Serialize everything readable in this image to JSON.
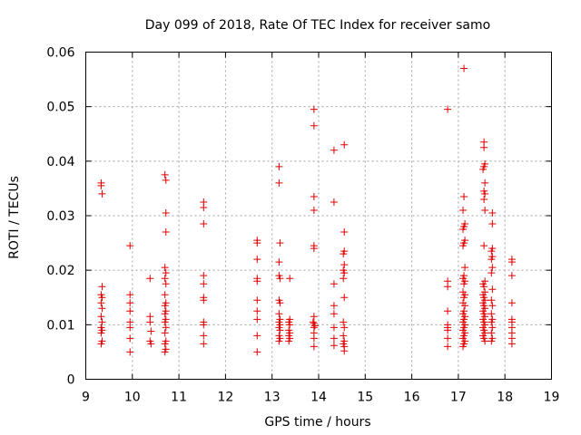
{
  "chart_data": {
    "type": "scatter",
    "title": "Day 099 of 2018, Rate Of TEC Index for receiver samo",
    "xlabel": "GPS time / hours",
    "ylabel": "ROTI / TECUs",
    "xlim": [
      9,
      19
    ],
    "ylim": [
      0,
      0.06
    ],
    "grid": true,
    "x_ticks": [
      "9",
      "10",
      "11",
      "12",
      "13",
      "14",
      "15",
      "16",
      "17",
      "18",
      "19"
    ],
    "y_ticks": [
      "0",
      "0.01",
      "0.02",
      "0.03",
      "0.04",
      "0.05",
      "0.06"
    ],
    "marker": "+",
    "color": "#e00000",
    "series": [
      {
        "name": "ROTI",
        "points": [
          [
            9.33,
            0.0355
          ],
          [
            9.33,
            0.036
          ],
          [
            9.35,
            0.034
          ],
          [
            9.35,
            0.017
          ],
          [
            9.33,
            0.0155
          ],
          [
            9.35,
            0.015
          ],
          [
            9.33,
            0.014
          ],
          [
            9.35,
            0.013
          ],
          [
            9.33,
            0.0115
          ],
          [
            9.35,
            0.0105
          ],
          [
            9.33,
            0.0095
          ],
          [
            9.35,
            0.009
          ],
          [
            9.33,
            0.0085
          ],
          [
            9.35,
            0.007
          ],
          [
            9.33,
            0.0065
          ],
          [
            9.95,
            0.0245
          ],
          [
            9.95,
            0.0155
          ],
          [
            9.95,
            0.014
          ],
          [
            9.95,
            0.0125
          ],
          [
            9.95,
            0.0105
          ],
          [
            9.95,
            0.0095
          ],
          [
            9.95,
            0.0075
          ],
          [
            9.95,
            0.005
          ],
          [
            10.38,
            0.0185
          ],
          [
            10.38,
            0.0115
          ],
          [
            10.38,
            0.0105
          ],
          [
            10.4,
            0.0088
          ],
          [
            10.38,
            0.007
          ],
          [
            10.4,
            0.0065
          ],
          [
            10.7,
            0.0375
          ],
          [
            10.72,
            0.0365
          ],
          [
            10.72,
            0.0305
          ],
          [
            10.72,
            0.027
          ],
          [
            10.7,
            0.0205
          ],
          [
            10.72,
            0.0195
          ],
          [
            10.7,
            0.0185
          ],
          [
            10.72,
            0.0175
          ],
          [
            10.7,
            0.0155
          ],
          [
            10.72,
            0.014
          ],
          [
            10.7,
            0.0135
          ],
          [
            10.72,
            0.0125
          ],
          [
            10.7,
            0.012
          ],
          [
            10.72,
            0.011
          ],
          [
            10.7,
            0.0105
          ],
          [
            10.72,
            0.0095
          ],
          [
            10.7,
            0.0085
          ],
          [
            10.72,
            0.007
          ],
          [
            10.7,
            0.0065
          ],
          [
            10.72,
            0.0055
          ],
          [
            10.7,
            0.005
          ],
          [
            11.53,
            0.0325
          ],
          [
            11.53,
            0.0315
          ],
          [
            11.53,
            0.0285
          ],
          [
            11.53,
            0.019
          ],
          [
            11.53,
            0.0175
          ],
          [
            11.53,
            0.015
          ],
          [
            11.53,
            0.0145
          ],
          [
            11.53,
            0.0105
          ],
          [
            11.53,
            0.01
          ],
          [
            11.53,
            0.008
          ],
          [
            11.53,
            0.0065
          ],
          [
            12.68,
            0.0255
          ],
          [
            12.68,
            0.025
          ],
          [
            12.68,
            0.022
          ],
          [
            12.68,
            0.0185
          ],
          [
            12.68,
            0.018
          ],
          [
            12.68,
            0.0145
          ],
          [
            12.68,
            0.0125
          ],
          [
            12.68,
            0.011
          ],
          [
            12.68,
            0.008
          ],
          [
            12.68,
            0.005
          ],
          [
            13.15,
            0.039
          ],
          [
            13.15,
            0.036
          ],
          [
            13.17,
            0.025
          ],
          [
            13.15,
            0.0215
          ],
          [
            13.15,
            0.019
          ],
          [
            13.17,
            0.0185
          ],
          [
            13.15,
            0.0145
          ],
          [
            13.17,
            0.014
          ],
          [
            13.15,
            0.012
          ],
          [
            13.17,
            0.011
          ],
          [
            13.15,
            0.0105
          ],
          [
            13.17,
            0.01
          ],
          [
            13.15,
            0.0095
          ],
          [
            13.17,
            0.009
          ],
          [
            13.15,
            0.008
          ],
          [
            13.17,
            0.0075
          ],
          [
            13.15,
            0.007
          ],
          [
            13.38,
            0.0185
          ],
          [
            13.38,
            0.011
          ],
          [
            13.36,
            0.0105
          ],
          [
            13.38,
            0.01
          ],
          [
            13.36,
            0.009
          ],
          [
            13.38,
            0.0085
          ],
          [
            13.36,
            0.008
          ],
          [
            13.38,
            0.0075
          ],
          [
            13.36,
            0.007
          ],
          [
            13.9,
            0.0495
          ],
          [
            13.9,
            0.0465
          ],
          [
            13.9,
            0.0335
          ],
          [
            13.9,
            0.031
          ],
          [
            13.9,
            0.0245
          ],
          [
            13.9,
            0.024
          ],
          [
            13.9,
            0.0115
          ],
          [
            13.88,
            0.0105
          ],
          [
            13.9,
            0.0102
          ],
          [
            13.92,
            0.0098
          ],
          [
            13.9,
            0.0095
          ],
          [
            13.9,
            0.0085
          ],
          [
            13.9,
            0.0075
          ],
          [
            13.9,
            0.006
          ],
          [
            14.33,
            0.042
          ],
          [
            14.33,
            0.0325
          ],
          [
            14.33,
            0.0175
          ],
          [
            14.33,
            0.0135
          ],
          [
            14.33,
            0.012
          ],
          [
            14.33,
            0.0095
          ],
          [
            14.33,
            0.0075
          ],
          [
            14.33,
            0.0062
          ],
          [
            14.55,
            0.043
          ],
          [
            14.55,
            0.027
          ],
          [
            14.55,
            0.0235
          ],
          [
            14.53,
            0.023
          ],
          [
            14.55,
            0.021
          ],
          [
            14.53,
            0.02
          ],
          [
            14.55,
            0.0195
          ],
          [
            14.53,
            0.0185
          ],
          [
            14.55,
            0.015
          ],
          [
            14.53,
            0.0105
          ],
          [
            14.55,
            0.0095
          ],
          [
            14.53,
            0.008
          ],
          [
            14.55,
            0.007
          ],
          [
            14.53,
            0.0065
          ],
          [
            14.55,
            0.006
          ],
          [
            14.55,
            0.0052
          ],
          [
            16.77,
            0.0495
          ],
          [
            16.77,
            0.018
          ],
          [
            16.77,
            0.017
          ],
          [
            16.77,
            0.0125
          ],
          [
            16.77,
            0.01
          ],
          [
            16.77,
            0.0095
          ],
          [
            16.77,
            0.009
          ],
          [
            16.77,
            0.0075
          ],
          [
            16.77,
            0.006
          ],
          [
            17.12,
            0.057
          ],
          [
            17.12,
            0.0335
          ],
          [
            17.1,
            0.031
          ],
          [
            17.14,
            0.0285
          ],
          [
            17.12,
            0.028
          ],
          [
            17.1,
            0.0275
          ],
          [
            17.14,
            0.0255
          ],
          [
            17.12,
            0.025
          ],
          [
            17.1,
            0.0245
          ],
          [
            17.14,
            0.0205
          ],
          [
            17.12,
            0.019
          ],
          [
            17.1,
            0.0185
          ],
          [
            17.14,
            0.018
          ],
          [
            17.12,
            0.0175
          ],
          [
            17.1,
            0.016
          ],
          [
            17.14,
            0.0155
          ],
          [
            17.12,
            0.015
          ],
          [
            17.1,
            0.014
          ],
          [
            17.14,
            0.0135
          ],
          [
            17.12,
            0.0125
          ],
          [
            17.1,
            0.012
          ],
          [
            17.14,
            0.0115
          ],
          [
            17.12,
            0.011
          ],
          [
            17.1,
            0.0105
          ],
          [
            17.14,
            0.01
          ],
          [
            17.12,
            0.0095
          ],
          [
            17.1,
            0.009
          ],
          [
            17.14,
            0.0085
          ],
          [
            17.12,
            0.008
          ],
          [
            17.1,
            0.0075
          ],
          [
            17.14,
            0.007
          ],
          [
            17.12,
            0.0065
          ],
          [
            17.1,
            0.006
          ],
          [
            17.55,
            0.0435
          ],
          [
            17.55,
            0.0425
          ],
          [
            17.57,
            0.0395
          ],
          [
            17.55,
            0.039
          ],
          [
            17.53,
            0.0385
          ],
          [
            17.57,
            0.036
          ],
          [
            17.55,
            0.0345
          ],
          [
            17.57,
            0.034
          ],
          [
            17.55,
            0.033
          ],
          [
            17.57,
            0.031
          ],
          [
            17.55,
            0.0245
          ],
          [
            17.57,
            0.018
          ],
          [
            17.53,
            0.0175
          ],
          [
            17.55,
            0.017
          ],
          [
            17.57,
            0.016
          ],
          [
            17.53,
            0.0155
          ],
          [
            17.55,
            0.015
          ],
          [
            17.57,
            0.0145
          ],
          [
            17.53,
            0.014
          ],
          [
            17.55,
            0.0135
          ],
          [
            17.57,
            0.013
          ],
          [
            17.53,
            0.0125
          ],
          [
            17.55,
            0.012
          ],
          [
            17.57,
            0.0115
          ],
          [
            17.53,
            0.011
          ],
          [
            17.55,
            0.0105
          ],
          [
            17.57,
            0.01
          ],
          [
            17.53,
            0.0095
          ],
          [
            17.55,
            0.009
          ],
          [
            17.57,
            0.0085
          ],
          [
            17.53,
            0.008
          ],
          [
            17.55,
            0.0075
          ],
          [
            17.57,
            0.007
          ],
          [
            17.73,
            0.0305
          ],
          [
            17.73,
            0.0285
          ],
          [
            17.73,
            0.024
          ],
          [
            17.71,
            0.0235
          ],
          [
            17.73,
            0.0225
          ],
          [
            17.71,
            0.022
          ],
          [
            17.73,
            0.0205
          ],
          [
            17.71,
            0.0195
          ],
          [
            17.73,
            0.0165
          ],
          [
            17.71,
            0.0145
          ],
          [
            17.73,
            0.0135
          ],
          [
            17.71,
            0.012
          ],
          [
            17.73,
            0.011
          ],
          [
            17.71,
            0.0105
          ],
          [
            17.73,
            0.0095
          ],
          [
            17.71,
            0.0085
          ],
          [
            17.73,
            0.0075
          ],
          [
            17.71,
            0.007
          ],
          [
            18.15,
            0.022
          ],
          [
            18.15,
            0.0215
          ],
          [
            18.15,
            0.019
          ],
          [
            18.15,
            0.014
          ],
          [
            18.15,
            0.011
          ],
          [
            18.15,
            0.0105
          ],
          [
            18.15,
            0.0095
          ],
          [
            18.15,
            0.0085
          ],
          [
            18.15,
            0.0075
          ],
          [
            18.15,
            0.0065
          ]
        ]
      }
    ]
  }
}
